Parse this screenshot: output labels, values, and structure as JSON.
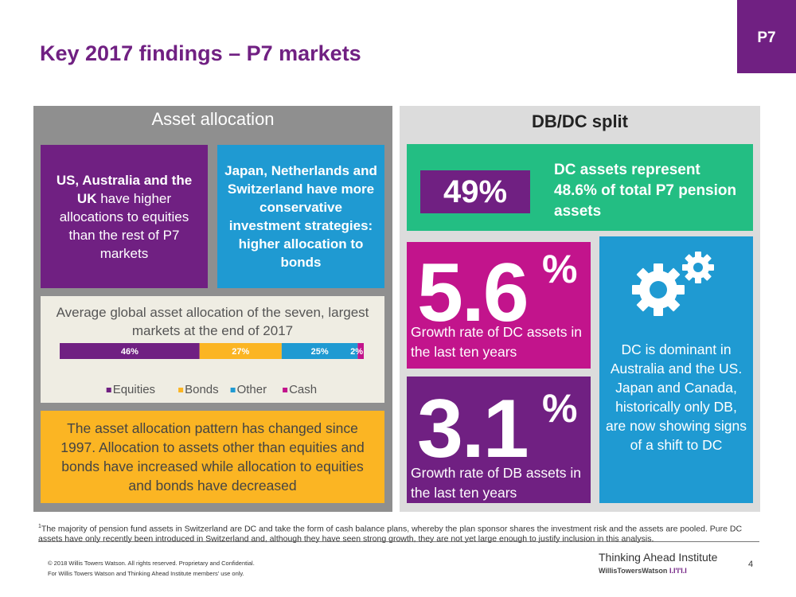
{
  "title": "Key 2017 findings – P7 markets",
  "tab_label": "P7",
  "asset_allocation": {
    "header": "Asset allocation",
    "us_box": {
      "bold": "US, Australia and the UK",
      "text": " have higher allocations to equities than the rest of P7 markets"
    },
    "jp_box": "Japan, Netherlands and Switzerland have more conservative investment strategies: higher allocation to bonds",
    "pattern_text": "The asset allocation pattern has changed since 1997. Allocation to assets other than equities and bonds have increased while allocation to equities and bonds have decreased"
  },
  "chart_data": {
    "type": "bar",
    "orientation": "horizontal-stacked-100",
    "title": "Average global asset allocation of the seven, largest markets at the end of 2017",
    "categories": [
      ""
    ],
    "series": [
      {
        "name": "Equities",
        "values": [
          46
        ],
        "label": "46%",
        "color": "#702082"
      },
      {
        "name": "Bonds",
        "values": [
          27
        ],
        "label": "27%",
        "color": "#fbb523"
      },
      {
        "name": "Other",
        "values": [
          25
        ],
        "label": "25%",
        "color": "#1f9ad2"
      },
      {
        "name": "Cash",
        "values": [
          2
        ],
        "label": "2%",
        "color": "#c2148c"
      }
    ],
    "xlim": [
      0,
      100
    ],
    "legend": "bottom"
  },
  "dbdc": {
    "header": "DB/DC split",
    "big_pct": "49%",
    "dc_represent": "DC assets represent 48.6% of total P7 pension assets",
    "dc_growth": {
      "number": "5.6",
      "pct": "%",
      "text": "Growth rate of DC assets in the last ten years"
    },
    "db_growth": {
      "number": "3.1",
      "pct": "%",
      "text": "Growth rate of DB assets in the last ten years"
    },
    "dominant_text": "DC is dominant in Australia and the US. Japan and Canada, historically only DB, are now showing signs of a shift to DC"
  },
  "footer": {
    "footnote_marker": "1",
    "footnote": "The majority of pension fund assets in Switzerland are DC and take the form of cash balance plans, whereby the plan sponsor shares the investment risk and the assets are pooled. Pure DC assets have only recently been introduced in Switzerland and, although they have seen strong growth, they are not yet large enough to justify inclusion in this analysis.",
    "copyright_1": "© 2018 Willis Towers Watson. All rights reserved. Proprietary and Confidential.",
    "copyright_2": "For Willis Towers Watson and Thinking Ahead Institute members' use only.",
    "brand_name": "Thinking Ahead Institute",
    "brand_sub": "WillisTowersWatson",
    "brand_mark": "I.I'I'I.I",
    "page_number": "4"
  }
}
